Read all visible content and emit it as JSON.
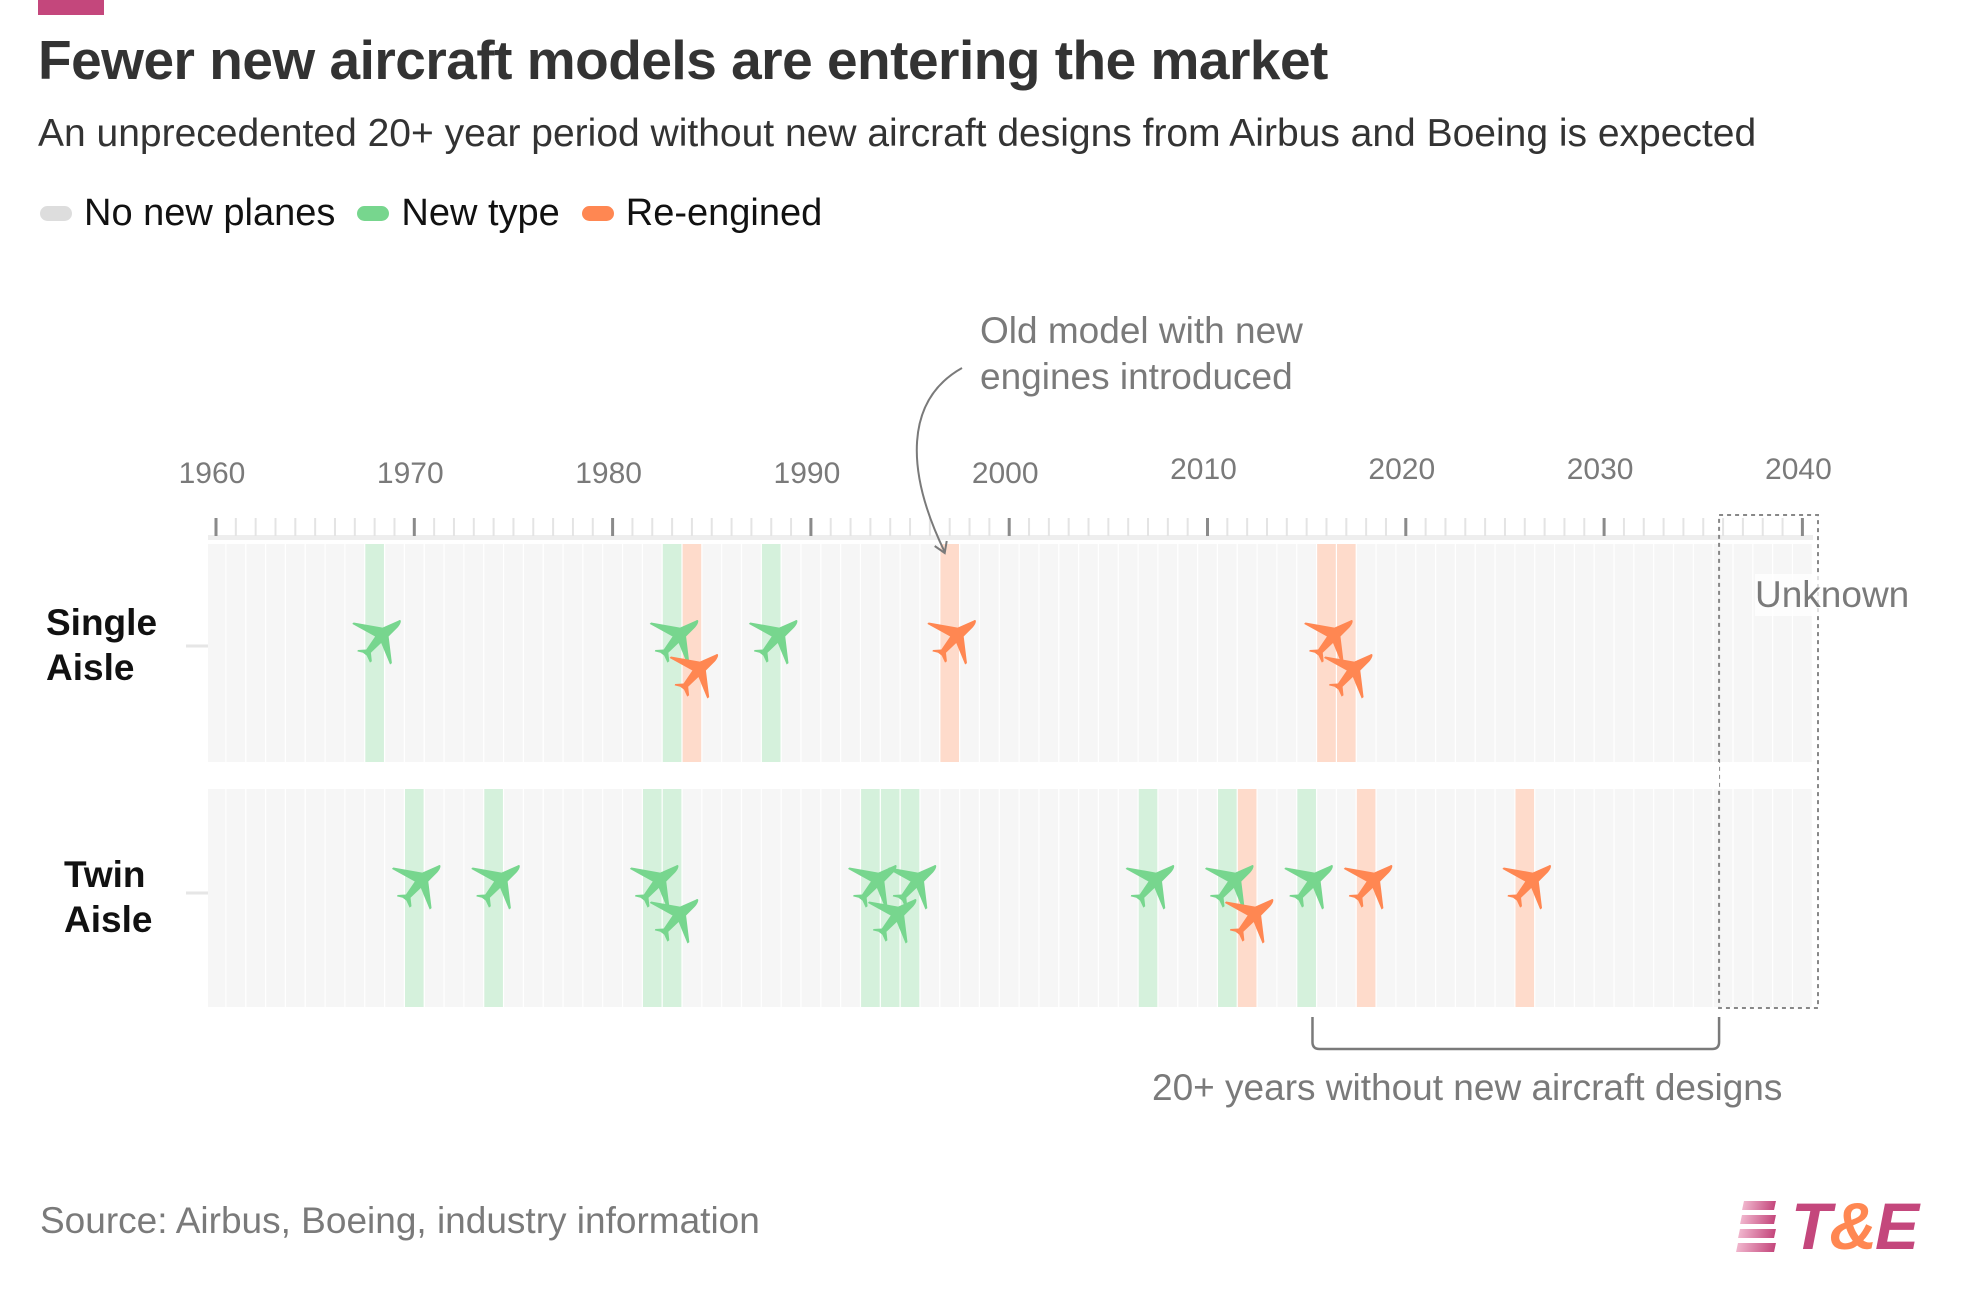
{
  "header": {
    "title": "Fewer new aircraft models are entering the market",
    "subtitle": "An unprecedented 20+ year period without new aircraft designs from Airbus and Boeing is expected"
  },
  "legend": [
    {
      "label": "No new planes",
      "color": "#dddddd"
    },
    {
      "label": "New type",
      "color": "#77d68e"
    },
    {
      "label": "Re-engined",
      "color": "#ff8752"
    }
  ],
  "annotations": {
    "reengine_note_line1": "Old model with new",
    "reengine_note_line2": "engines introduced",
    "unknown": "Unknown",
    "gap_note": "20+ years without new aircraft designs"
  },
  "footer": {
    "source": "Source: Airbus, Boeing, industry information",
    "logo_left": "T",
    "logo_amp": "&",
    "logo_right": "E"
  },
  "chart_data": {
    "type": "heatmap",
    "title": "Fewer new aircraft models are entering the market",
    "subtitle": "An unprecedented 20+ year period without new aircraft designs from Airbus and Boeing is expected",
    "xlabel": "",
    "ylabel": "",
    "x_range": [
      1960,
      2040
    ],
    "x_ticks": [
      1960,
      1970,
      1980,
      1990,
      2000,
      2010,
      2020,
      2030,
      2040
    ],
    "grid": true,
    "legend_position": "top-left",
    "categories": [
      "No new planes",
      "New type",
      "Re-engined"
    ],
    "colors": {
      "none": "#f6f6f6",
      "new_type_band": "#d5f1dc",
      "re_engined_band": "#fedbcb",
      "new_type_icon": "#77d68e",
      "re_engined_icon": "#ff8752"
    },
    "rows": [
      {
        "name": "Single Aisle",
        "label_line1": "Single",
        "label_line2": "Aisle",
        "events": [
          {
            "year": 1968,
            "type": "new"
          },
          {
            "year": 1983,
            "type": "new"
          },
          {
            "year": 1984,
            "type": "reengine"
          },
          {
            "year": 1988,
            "type": "new"
          },
          {
            "year": 1997,
            "type": "reengine"
          },
          {
            "year": 2016,
            "type": "reengine"
          },
          {
            "year": 2017,
            "type": "reengine"
          }
        ]
      },
      {
        "name": "Twin Aisle",
        "label_line1": "Twin",
        "label_line2": "Aisle",
        "events": [
          {
            "year": 1970,
            "type": "new"
          },
          {
            "year": 1974,
            "type": "new"
          },
          {
            "year": 1982,
            "type": "new"
          },
          {
            "year": 1983,
            "type": "new"
          },
          {
            "year": 1993,
            "type": "new"
          },
          {
            "year": 1994,
            "type": "new"
          },
          {
            "year": 1995,
            "type": "new"
          },
          {
            "year": 2007,
            "type": "new"
          },
          {
            "year": 2011,
            "type": "new"
          },
          {
            "year": 2012,
            "type": "reengine"
          },
          {
            "year": 2015,
            "type": "new"
          },
          {
            "year": 2018,
            "type": "reengine"
          },
          {
            "year": 2026,
            "type": "reengine"
          }
        ]
      }
    ],
    "unknown_range": [
      2036,
      2040
    ],
    "gap_bracket_range": [
      2016,
      2036
    ],
    "annotation_arrow_target_year": 1997
  }
}
